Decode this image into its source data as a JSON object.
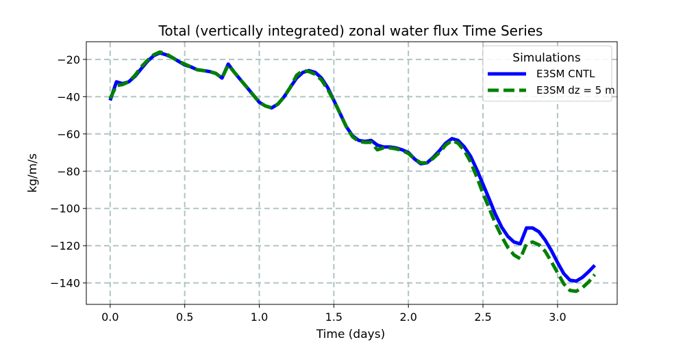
{
  "chart_data": {
    "type": "line",
    "title": "Total (vertically integrated) zonal water flux Time Series",
    "xlabel": "Time (days)",
    "ylabel": "kg/m/s",
    "xlim": [
      -0.16,
      3.4
    ],
    "ylim": [
      -151.5,
      -10.5
    ],
    "xticks": [
      0.0,
      0.5,
      1.0,
      1.5,
      2.0,
      2.5,
      3.0
    ],
    "xtick_labels": [
      "0.0",
      "0.5",
      "1.0",
      "1.5",
      "2.0",
      "2.5",
      "3.0"
    ],
    "yticks": [
      -20,
      -40,
      -60,
      -80,
      -100,
      -120,
      -140
    ],
    "ytick_labels": [
      "−20",
      "−40",
      "−60",
      "−80",
      "−100",
      "−120",
      "−140"
    ],
    "grid": true,
    "legend": {
      "title": "Simulations",
      "placement": "top-right"
    },
    "series": [
      {
        "name": "E3SM CNTL",
        "color": "#0000ff",
        "style": "solid",
        "x": [
          0.0,
          0.042,
          0.083,
          0.125,
          0.167,
          0.208,
          0.25,
          0.292,
          0.333,
          0.375,
          0.417,
          0.458,
          0.5,
          0.542,
          0.583,
          0.625,
          0.667,
          0.708,
          0.75,
          0.792,
          0.833,
          0.875,
          0.917,
          0.958,
          1.0,
          1.042,
          1.083,
          1.125,
          1.167,
          1.208,
          1.25,
          1.292,
          1.333,
          1.375,
          1.417,
          1.458,
          1.5,
          1.542,
          1.583,
          1.625,
          1.667,
          1.708,
          1.75,
          1.792,
          1.833,
          1.875,
          1.917,
          1.958,
          2.0,
          2.042,
          2.083,
          2.125,
          2.167,
          2.208,
          2.25,
          2.292,
          2.333,
          2.375,
          2.417,
          2.458,
          2.5,
          2.542,
          2.583,
          2.625,
          2.667,
          2.708,
          2.75,
          2.792,
          2.833,
          2.875,
          2.917,
          2.958,
          3.0,
          3.042,
          3.083,
          3.125,
          3.167,
          3.208,
          3.25
        ],
        "y": [
          -42,
          -32,
          -33,
          -32,
          -29,
          -25,
          -21,
          -18,
          -16.5,
          -17.5,
          -19,
          -21,
          -23,
          -24,
          -25.5,
          -26,
          -26.5,
          -27.5,
          -30,
          -22.5,
          -27,
          -31,
          -35,
          -39,
          -43,
          -45,
          -46,
          -44,
          -40,
          -35,
          -30,
          -27,
          -26,
          -27,
          -30,
          -35,
          -42,
          -49,
          -56,
          -61,
          -63.5,
          -64,
          -63.5,
          -66,
          -67,
          -67,
          -67.5,
          -68.5,
          -70,
          -73.5,
          -76,
          -75.5,
          -72.5,
          -69,
          -65,
          -62.5,
          -63.5,
          -67,
          -72,
          -79,
          -87,
          -95,
          -103,
          -110,
          -115,
          -118,
          -119,
          -110.5,
          -110.5,
          -112.5,
          -117,
          -122.5,
          -129,
          -135,
          -138.5,
          -139,
          -137,
          -134,
          -130.5
        ]
      },
      {
        "name": "E3SM dz = 5 m",
        "color": "#008000",
        "style": "dashed",
        "x": [
          0.0,
          0.042,
          0.083,
          0.125,
          0.167,
          0.208,
          0.25,
          0.292,
          0.333,
          0.375,
          0.417,
          0.458,
          0.5,
          0.542,
          0.583,
          0.625,
          0.667,
          0.708,
          0.75,
          0.792,
          0.833,
          0.875,
          0.917,
          0.958,
          1.0,
          1.042,
          1.083,
          1.125,
          1.167,
          1.208,
          1.25,
          1.292,
          1.333,
          1.375,
          1.417,
          1.458,
          1.5,
          1.542,
          1.583,
          1.625,
          1.667,
          1.708,
          1.75,
          1.792,
          1.833,
          1.875,
          1.917,
          1.958,
          2.0,
          2.042,
          2.083,
          2.125,
          2.167,
          2.208,
          2.25,
          2.292,
          2.333,
          2.375,
          2.417,
          2.458,
          2.5,
          2.542,
          2.583,
          2.625,
          2.667,
          2.708,
          2.75,
          2.792,
          2.833,
          2.875,
          2.917,
          2.958,
          3.0,
          3.042,
          3.083,
          3.125,
          3.167,
          3.208,
          3.25
        ],
        "y": [
          -41,
          -34,
          -33.5,
          -32,
          -28.5,
          -24,
          -20.5,
          -17.5,
          -16,
          -17,
          -19,
          -21,
          -22.5,
          -24,
          -25.5,
          -26,
          -26.5,
          -27.5,
          -30,
          -23,
          -27,
          -31,
          -35,
          -39,
          -43,
          -45,
          -46,
          -44,
          -40,
          -35,
          -28.5,
          -26,
          -26.5,
          -28,
          -31,
          -36,
          -42,
          -49,
          -56,
          -61.5,
          -64,
          -64.5,
          -64.5,
          -68.5,
          -67.5,
          -67.5,
          -68,
          -69,
          -70.5,
          -73.5,
          -75.5,
          -75.5,
          -73,
          -70,
          -66,
          -63.5,
          -65,
          -69,
          -75,
          -83,
          -92,
          -100,
          -108,
          -115,
          -121,
          -125,
          -127,
          -119,
          -118,
          -119.5,
          -123,
          -128.5,
          -134.5,
          -140.5,
          -144,
          -144.5,
          -142.5,
          -139.5,
          -135.5
        ]
      }
    ]
  }
}
